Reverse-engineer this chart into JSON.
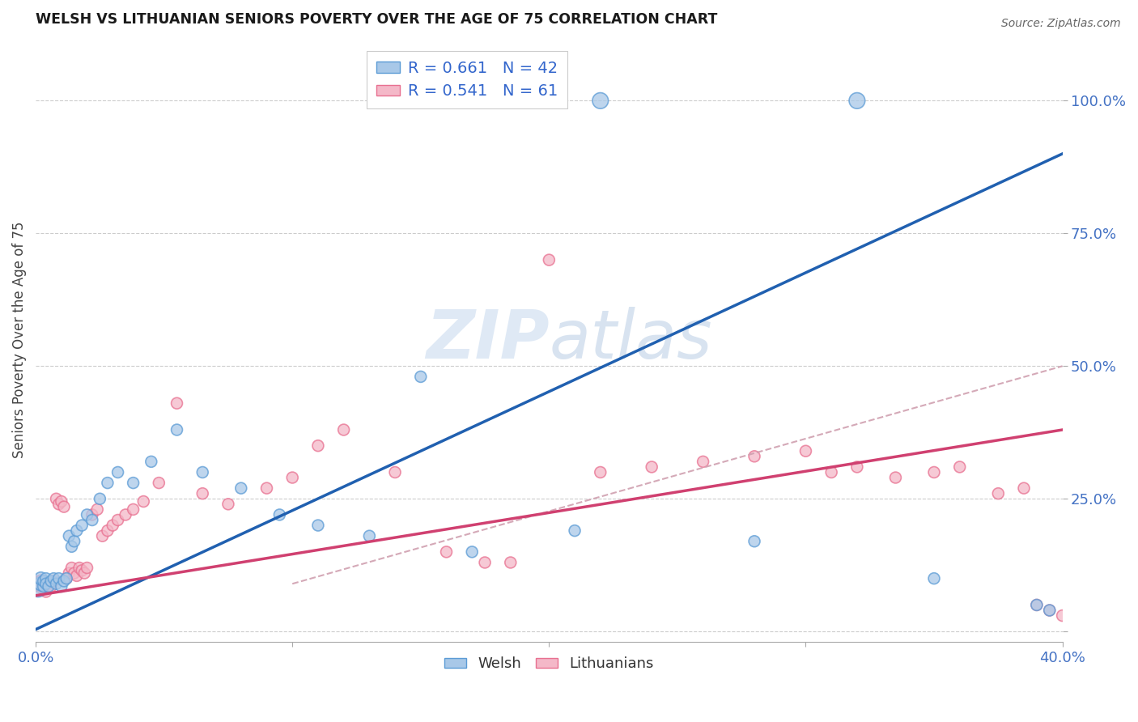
{
  "title": "WELSH VS LITHUANIAN SENIORS POVERTY OVER THE AGE OF 75 CORRELATION CHART",
  "source": "Source: ZipAtlas.com",
  "ylabel": "Seniors Poverty Over the Age of 75",
  "xlim": [
    0.0,
    0.4
  ],
  "ylim": [
    -0.02,
    1.12
  ],
  "welsh_color": "#a8c8e8",
  "welsh_edge": "#5b9bd5",
  "lith_color": "#f4b8c8",
  "lith_edge": "#e87090",
  "trend_blue": "#2060b0",
  "trend_pink": "#d04070",
  "trend_dashed_color": "#d0a0b0",
  "background": "#ffffff",
  "grid_color": "#cccccc",
  "tick_color": "#4472c4",
  "legend_label1": "R = 0.661   N = 42",
  "legend_label2": "R = 0.541   N = 61",
  "welsh_label": "Welsh",
  "lith_label": "Lithuanians",
  "blue_trend": [
    0.0,
    0.004,
    0.4,
    0.9
  ],
  "pink_trend": [
    -0.01,
    0.06,
    0.4,
    0.38
  ],
  "dash_trend": [
    0.1,
    0.09,
    0.4,
    0.5
  ],
  "welsh_x": [
    0.001,
    0.002,
    0.002,
    0.003,
    0.003,
    0.004,
    0.004,
    0.005,
    0.006,
    0.007,
    0.008,
    0.009,
    0.01,
    0.011,
    0.012,
    0.013,
    0.014,
    0.015,
    0.016,
    0.018,
    0.02,
    0.022,
    0.025,
    0.028,
    0.032,
    0.038,
    0.045,
    0.055,
    0.065,
    0.08,
    0.095,
    0.11,
    0.13,
    0.15,
    0.17,
    0.21,
    0.22,
    0.28,
    0.32,
    0.35,
    0.39,
    0.395
  ],
  "welsh_y": [
    0.08,
    0.09,
    0.1,
    0.085,
    0.095,
    0.1,
    0.09,
    0.085,
    0.095,
    0.1,
    0.09,
    0.1,
    0.085,
    0.095,
    0.1,
    0.18,
    0.16,
    0.17,
    0.19,
    0.2,
    0.22,
    0.21,
    0.25,
    0.28,
    0.3,
    0.28,
    0.32,
    0.38,
    0.3,
    0.27,
    0.22,
    0.2,
    0.18,
    0.48,
    0.15,
    0.19,
    1.0,
    0.17,
    1.0,
    0.1,
    0.05,
    0.04
  ],
  "lith_x": [
    0.001,
    0.002,
    0.002,
    0.003,
    0.003,
    0.004,
    0.004,
    0.005,
    0.005,
    0.006,
    0.007,
    0.008,
    0.009,
    0.01,
    0.011,
    0.012,
    0.013,
    0.014,
    0.015,
    0.016,
    0.017,
    0.018,
    0.019,
    0.02,
    0.022,
    0.024,
    0.026,
    0.028,
    0.03,
    0.032,
    0.035,
    0.038,
    0.042,
    0.048,
    0.055,
    0.065,
    0.075,
    0.09,
    0.1,
    0.11,
    0.12,
    0.14,
    0.16,
    0.175,
    0.185,
    0.2,
    0.22,
    0.24,
    0.26,
    0.28,
    0.3,
    0.31,
    0.32,
    0.335,
    0.35,
    0.36,
    0.375,
    0.385,
    0.39,
    0.395,
    0.4
  ],
  "lith_y": [
    0.09,
    0.085,
    0.095,
    0.08,
    0.09,
    0.085,
    0.075,
    0.085,
    0.09,
    0.085,
    0.095,
    0.25,
    0.24,
    0.245,
    0.235,
    0.1,
    0.11,
    0.12,
    0.11,
    0.105,
    0.12,
    0.115,
    0.11,
    0.12,
    0.22,
    0.23,
    0.18,
    0.19,
    0.2,
    0.21,
    0.22,
    0.23,
    0.245,
    0.28,
    0.43,
    0.26,
    0.24,
    0.27,
    0.29,
    0.35,
    0.38,
    0.3,
    0.15,
    0.13,
    0.13,
    0.7,
    0.3,
    0.31,
    0.32,
    0.33,
    0.34,
    0.3,
    0.31,
    0.29,
    0.3,
    0.31,
    0.26,
    0.27,
    0.05,
    0.04,
    0.03
  ],
  "welsh_sizes": [
    200,
    150,
    130,
    100,
    100,
    100,
    100,
    100,
    100,
    100,
    100,
    100,
    100,
    100,
    100,
    100,
    100,
    100,
    100,
    100,
    100,
    100,
    100,
    100,
    100,
    100,
    100,
    100,
    100,
    100,
    100,
    100,
    100,
    100,
    100,
    100,
    200,
    100,
    200,
    100,
    100,
    100
  ],
  "lith_sizes": [
    180,
    130,
    120,
    100,
    100,
    100,
    100,
    100,
    100,
    100,
    100,
    100,
    100,
    100,
    100,
    100,
    100,
    100,
    100,
    100,
    100,
    100,
    100,
    100,
    100,
    100,
    100,
    100,
    100,
    100,
    100,
    100,
    100,
    100,
    100,
    100,
    100,
    100,
    100,
    100,
    100,
    100,
    100,
    100,
    100,
    100,
    100,
    100,
    100,
    100,
    100,
    100,
    100,
    100,
    100,
    100,
    100,
    100,
    100,
    100,
    100
  ]
}
